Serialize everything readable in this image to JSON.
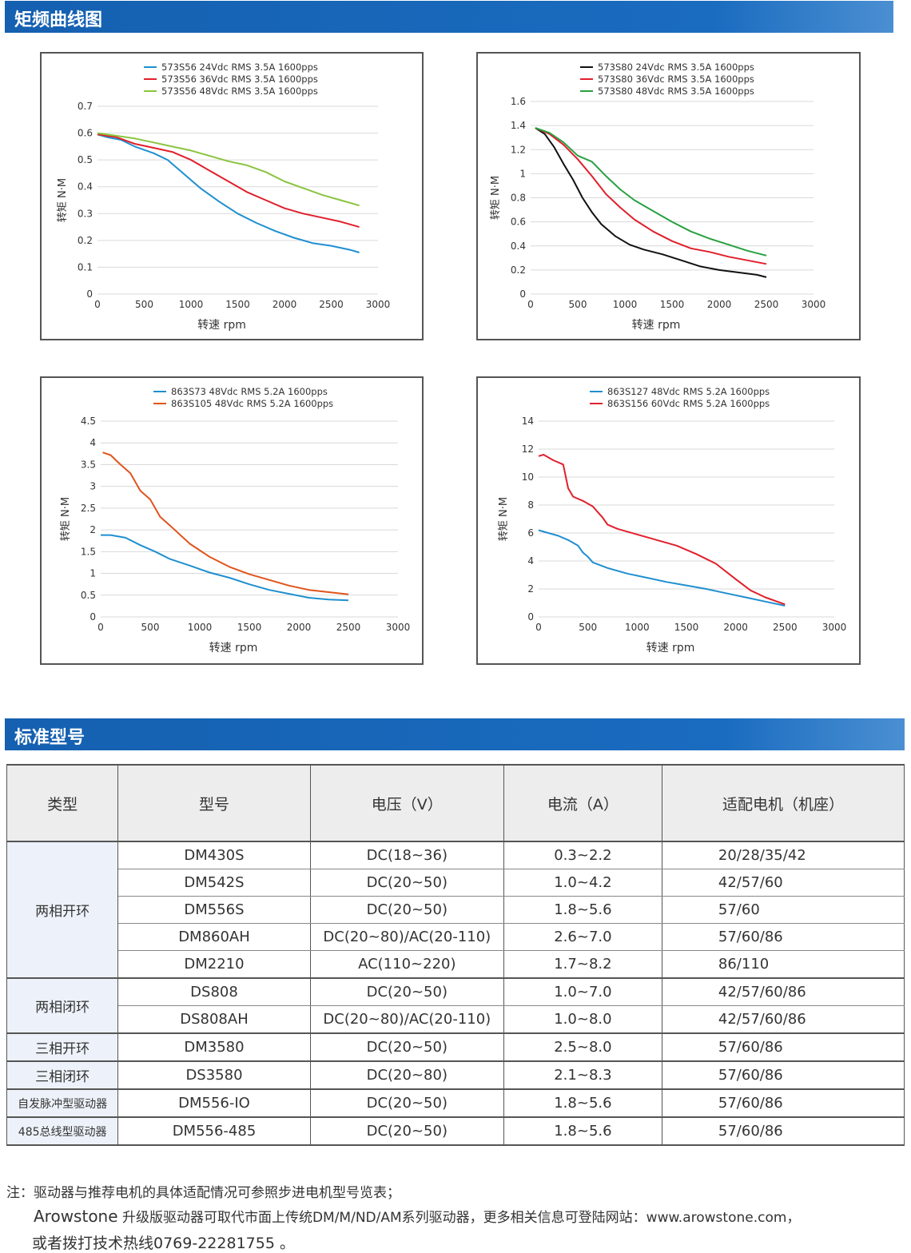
{
  "section1_title": "矩频曲线图",
  "section2_title": "标准型号",
  "colors": {
    "blue": "#1f8fd0",
    "red": "#e0202c",
    "green": "#8ac43f",
    "black": "#111111",
    "orange": "#e0541c",
    "header": "#1560b0"
  },
  "chart_data": [
    {
      "type": "line",
      "ylabel": "转矩 N·M",
      "xlabel": "转速 rpm",
      "xlim": [
        0,
        3000
      ],
      "ylim": [
        0,
        0.7
      ],
      "xticks": [
        0,
        500,
        1000,
        1500,
        2000,
        2500,
        3000
      ],
      "yticks": [
        0,
        0.1,
        0.2,
        0.3,
        0.4,
        0.5,
        0.6,
        0.7
      ],
      "legend": "top-center",
      "series": [
        {
          "name": "573S56 24Vdc  RMS  3.5A  1600pps",
          "color": "#1f8fd0",
          "x": [
            0,
            100,
            250,
            400,
            600,
            750,
            900,
            1100,
            1300,
            1500,
            1700,
            1900,
            2100,
            2300,
            2500,
            2700,
            2800
          ],
          "y": [
            0.595,
            0.585,
            0.575,
            0.55,
            0.525,
            0.5,
            0.455,
            0.395,
            0.345,
            0.3,
            0.265,
            0.235,
            0.21,
            0.19,
            0.18,
            0.165,
            0.155
          ]
        },
        {
          "name": "573S56 36Vdc  RMS  3.5A  1600pps",
          "color": "#e0202c",
          "x": [
            0,
            200,
            400,
            600,
            800,
            1000,
            1200,
            1400,
            1600,
            1800,
            2000,
            2200,
            2400,
            2600,
            2800
          ],
          "y": [
            0.595,
            0.585,
            0.56,
            0.545,
            0.53,
            0.5,
            0.46,
            0.42,
            0.38,
            0.35,
            0.32,
            0.3,
            0.285,
            0.27,
            0.25
          ]
        },
        {
          "name": "573S56 48Vdc  RMS  3.5A  1600pps",
          "color": "#8ac43f",
          "x": [
            0,
            200,
            400,
            600,
            800,
            1000,
            1200,
            1400,
            1600,
            1800,
            2000,
            2200,
            2400,
            2600,
            2800
          ],
          "y": [
            0.6,
            0.59,
            0.58,
            0.565,
            0.55,
            0.535,
            0.515,
            0.495,
            0.48,
            0.455,
            0.42,
            0.395,
            0.37,
            0.35,
            0.33
          ]
        }
      ]
    },
    {
      "type": "line",
      "ylabel": "转矩 N·M",
      "xlabel": "转速 rpm",
      "xlim": [
        0,
        3000
      ],
      "ylim": [
        0,
        1.6
      ],
      "xticks": [
        0,
        500,
        1000,
        1500,
        2000,
        2500,
        3000
      ],
      "yticks": [
        0,
        0.2,
        0.4,
        0.6,
        0.8,
        1,
        1.2,
        1.4,
        1.6
      ],
      "ytick_labels": [
        "0",
        "0.2",
        "0.4",
        "0.6",
        "0.8",
        "1",
        "1.2",
        "1.4",
        "1.6"
      ],
      "legend": "top-center",
      "series": [
        {
          "name": "573S80 24Vdc  RMS  3.5A  1600pps",
          "color": "#111111",
          "x": [
            50,
            150,
            250,
            350,
            450,
            550,
            650,
            750,
            900,
            1050,
            1200,
            1400,
            1600,
            1800,
            2000,
            2200,
            2400,
            2500
          ],
          "y": [
            1.38,
            1.33,
            1.22,
            1.08,
            0.95,
            0.8,
            0.68,
            0.58,
            0.48,
            0.41,
            0.37,
            0.33,
            0.28,
            0.23,
            0.2,
            0.18,
            0.16,
            0.14
          ]
        },
        {
          "name": "573S80 36Vdc  RMS  3.5A  1600pps",
          "color": "#e0202c",
          "x": [
            50,
            200,
            350,
            500,
            650,
            800,
            950,
            1100,
            1300,
            1500,
            1700,
            1900,
            2100,
            2300,
            2500
          ],
          "y": [
            1.38,
            1.33,
            1.24,
            1.12,
            0.98,
            0.83,
            0.72,
            0.62,
            0.52,
            0.44,
            0.38,
            0.35,
            0.31,
            0.28,
            0.25
          ]
        },
        {
          "name": "573S80 48Vdc  RMS  3.5A  1600pps",
          "color": "#28a040",
          "x": [
            50,
            200,
            350,
            500,
            650,
            800,
            950,
            1100,
            1300,
            1500,
            1700,
            1900,
            2100,
            2300,
            2500
          ],
          "y": [
            1.38,
            1.34,
            1.26,
            1.15,
            1.1,
            0.98,
            0.87,
            0.78,
            0.69,
            0.6,
            0.52,
            0.46,
            0.41,
            0.36,
            0.32
          ]
        }
      ]
    },
    {
      "type": "line",
      "ylabel": "转矩 N·M",
      "xlabel": "转速 rpm",
      "xlim": [
        0,
        3000
      ],
      "ylim": [
        0,
        4.5
      ],
      "xticks": [
        0,
        500,
        1000,
        1500,
        2000,
        2500,
        3000
      ],
      "yticks": [
        0,
        0.5,
        1,
        1.5,
        2,
        2.5,
        3,
        3.5,
        4,
        4.5
      ],
      "legend": "top-center",
      "series": [
        {
          "name": "863S73   48Vdc  RMS  5.2A  1600pps",
          "color": "#1f8fd0",
          "x": [
            0,
            100,
            250,
            400,
            550,
            700,
            900,
            1100,
            1300,
            1500,
            1700,
            1900,
            2100,
            2300,
            2500
          ],
          "y": [
            1.88,
            1.88,
            1.82,
            1.65,
            1.5,
            1.33,
            1.18,
            1.02,
            0.9,
            0.75,
            0.62,
            0.53,
            0.44,
            0.4,
            0.38
          ]
        },
        {
          "name": "863S105 48Vdc  RMS  5.2A  1600pps",
          "color": "#e0541c",
          "x": [
            20,
            100,
            200,
            300,
            400,
            500,
            600,
            700,
            900,
            1100,
            1300,
            1500,
            1700,
            1900,
            2100,
            2300,
            2500
          ],
          "y": [
            3.78,
            3.72,
            3.5,
            3.3,
            2.9,
            2.7,
            2.3,
            2.1,
            1.68,
            1.38,
            1.15,
            0.98,
            0.85,
            0.72,
            0.62,
            0.57,
            0.52
          ]
        }
      ]
    },
    {
      "type": "line",
      "ylabel": "转矩 N·M",
      "xlabel": "转速 rpm",
      "xlim": [
        0,
        3000
      ],
      "ylim": [
        0,
        14
      ],
      "xticks": [
        0,
        500,
        1000,
        1500,
        2000,
        2500,
        3000
      ],
      "yticks": [
        0,
        2,
        4,
        6,
        8,
        10,
        12,
        14
      ],
      "legend": "top-center",
      "series": [
        {
          "name": "863S127  48Vdc  RMS  5.2A  1600pps",
          "color": "#1f8fd0",
          "x": [
            0,
            100,
            200,
            300,
            400,
            450,
            500,
            550,
            700,
            900,
            1100,
            1300,
            1500,
            1700,
            1900,
            2100,
            2300,
            2500
          ],
          "y": [
            6.2,
            6.0,
            5.8,
            5.5,
            5.1,
            4.6,
            4.3,
            3.9,
            3.5,
            3.1,
            2.8,
            2.5,
            2.25,
            2.0,
            1.7,
            1.4,
            1.1,
            0.8
          ]
        },
        {
          "name": "863S156  60Vdc  RMS  5.2A  1600pps",
          "color": "#e0202c",
          "x": [
            0,
            50,
            150,
            250,
            300,
            350,
            450,
            550,
            650,
            700,
            800,
            1000,
            1200,
            1400,
            1600,
            1800,
            2000,
            2150,
            2300,
            2500
          ],
          "y": [
            11.5,
            11.6,
            11.2,
            10.9,
            9.2,
            8.6,
            8.3,
            7.9,
            7.1,
            6.6,
            6.3,
            5.9,
            5.5,
            5.1,
            4.5,
            3.8,
            2.7,
            1.9,
            1.4,
            0.9
          ]
        }
      ]
    }
  ],
  "table": {
    "headers": [
      "类型",
      "型号",
      "电压（V）",
      "电流（A）",
      "适配电机（机座）"
    ],
    "rows": [
      {
        "model": "DM430S",
        "voltage": "DC(18~36)",
        "current": "0.3~2.2",
        "motor": "20/28/35/42"
      },
      {
        "model": "DM542S",
        "voltage": "DC(20~50)",
        "current": "1.0~4.2",
        "motor": "42/57/60"
      },
      {
        "model": "DM556S",
        "voltage": "DC(20~50)",
        "current": "1.8~5.6",
        "motor": "57/60"
      },
      {
        "model": "DM860AH",
        "voltage": "DC(20~80)/AC(20-110)",
        "current": "2.6~7.0",
        "motor": "57/60/86"
      },
      {
        "model": "DM2210",
        "voltage": "AC(110~220)",
        "current": "1.7~8.2",
        "motor": " 86/110"
      },
      {
        "model": "DS808",
        "voltage": "DC(20~50)",
        "current": "1.0~7.0",
        "motor": "42/57/60/86"
      },
      {
        "model": "DS808AH",
        "voltage": "DC(20~80)/AC(20-110)",
        "current": "1.0~8.0",
        "motor": "42/57/60/86"
      },
      {
        "model": "DM3580",
        "voltage": "DC(20~50)",
        "current": "2.5~8.0",
        "motor": "57/60/86"
      },
      {
        "model": "DS3580",
        "voltage": "DC(20~80)",
        "current": "2.1~8.3",
        "motor": "57/60/86"
      },
      {
        "model": "DM556-IO",
        "voltage": "DC(20~50)",
        "current": "1.8~5.6",
        "motor": "57/60/86"
      },
      {
        "model": "DM556-485",
        "voltage": "DC(20~50)",
        "current": "1.8~5.6",
        "motor": "57/60/86"
      }
    ],
    "categories": [
      {
        "label": "两相开环",
        "start": 0,
        "span": 5
      },
      {
        "label": "两相闭环",
        "start": 5,
        "span": 2
      },
      {
        "label": "三相开环",
        "start": 7,
        "span": 1
      },
      {
        "label": "三相闭环",
        "start": 8,
        "span": 1
      },
      {
        "label": "自发脉冲型驱动器",
        "start": 9,
        "span": 1
      },
      {
        "label": "485总线型驱动器",
        "start": 10,
        "span": 1
      }
    ]
  },
  "notes": {
    "line1": "注：驱动器与推荐电机的具体适配情况可参照步进电机型号览表；",
    "brand": "Arowstone",
    "line2": " 升级版驱动器可取代市面上传统DM/M/ND/AM系列驱动器，更多相关信息可登陆网站：www.arowstone.com，",
    "line3": "或者拨打技术热线0769-22281755 。"
  }
}
